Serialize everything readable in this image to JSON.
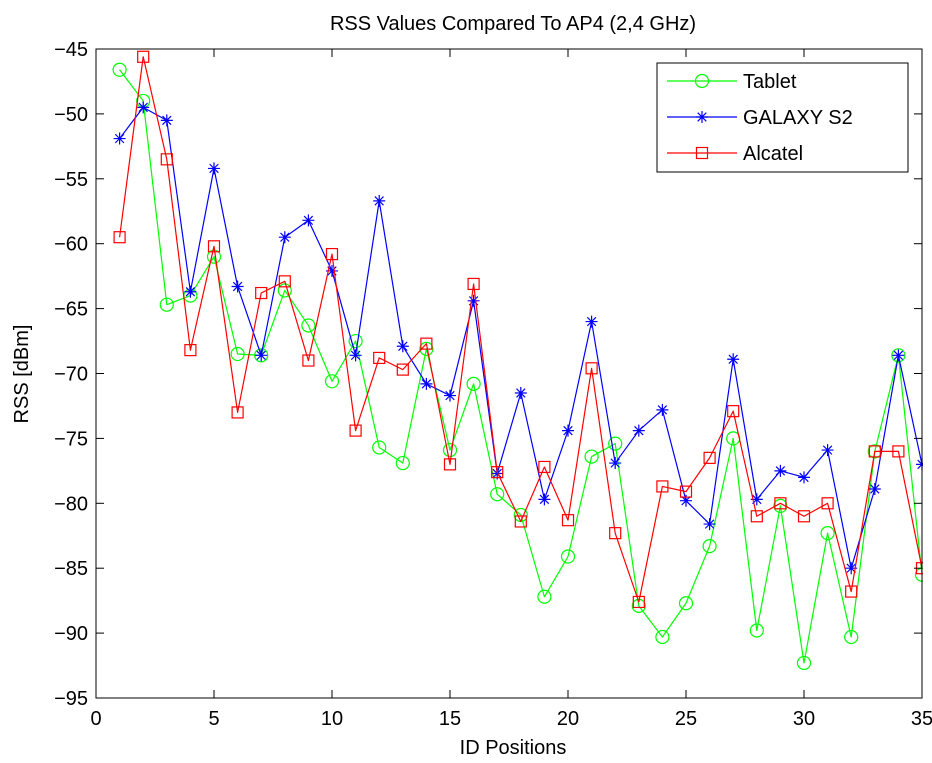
{
  "chart_data": {
    "type": "line",
    "title": "RSS Values Compared To AP4 (2,4 GHz)",
    "xlabel": "ID Positions",
    "ylabel": "RSS [dBm]",
    "xlim": [
      0,
      35
    ],
    "ylim": [
      -95,
      -45
    ],
    "xticks": [
      0,
      5,
      10,
      15,
      20,
      25,
      30,
      35
    ],
    "yticks": [
      -95,
      -90,
      -85,
      -80,
      -75,
      -70,
      -65,
      -60,
      -55,
      -50,
      -45
    ],
    "grid": false,
    "legend_position": "top-right",
    "x": [
      1,
      2,
      3,
      4,
      5,
      6,
      7,
      8,
      9,
      10,
      11,
      12,
      13,
      14,
      15,
      16,
      17,
      18,
      19,
      20,
      21,
      22,
      23,
      24,
      25,
      26,
      27,
      28,
      29,
      30,
      31,
      32,
      33,
      34,
      35
    ],
    "series": [
      {
        "name": "Tablet",
        "color": "#00ff00",
        "marker": "circle",
        "values": [
          -46.6,
          -49,
          -64.7,
          -64,
          -61,
          -68.5,
          -68.6,
          -63.6,
          -66.3,
          -70.6,
          -67.5,
          -75.7,
          -76.9,
          -68.1,
          -75.9,
          -70.8,
          -79.3,
          -80.9,
          -87.2,
          -84.1,
          -76.4,
          -75.4,
          -87.9,
          -90.3,
          -87.7,
          -83.3,
          -75,
          -89.8,
          -80.2,
          -92.3,
          -82.3,
          -90.3,
          -76,
          -68.6,
          -85.5
        ]
      },
      {
        "name": "GALAXY S2",
        "color": "#0000ff",
        "marker": "star",
        "values": [
          -51.9,
          -49.5,
          -50.5,
          -63.7,
          -54.2,
          -63.3,
          -68.6,
          -59.5,
          -58.2,
          -62.1,
          -68.6,
          -56.7,
          -67.9,
          -70.8,
          -71.7,
          -64.4,
          -77.7,
          -71.5,
          -79.7,
          -74.4,
          -66,
          -76.9,
          -74.4,
          -72.8,
          -79.8,
          -81.6,
          -68.9,
          -79.7,
          -77.5,
          -78,
          -75.9,
          -85,
          -78.9,
          -68.6,
          -77
        ]
      },
      {
        "name": "Alcatel",
        "color": "#ff0000",
        "marker": "square",
        "values": [
          -59.5,
          -45.6,
          -53.5,
          -68.2,
          -60.2,
          -73,
          -63.8,
          -62.9,
          -69,
          -60.8,
          -74.4,
          -68.8,
          -69.7,
          -67.7,
          -77,
          -63.1,
          -77.6,
          -81.4,
          -77.2,
          -81.3,
          -69.6,
          -82.3,
          -87.6,
          -78.7,
          -79.1,
          -76.5,
          -72.9,
          -81,
          -80,
          -81,
          -80,
          -86.8,
          -76,
          -76,
          -85
        ]
      }
    ]
  }
}
